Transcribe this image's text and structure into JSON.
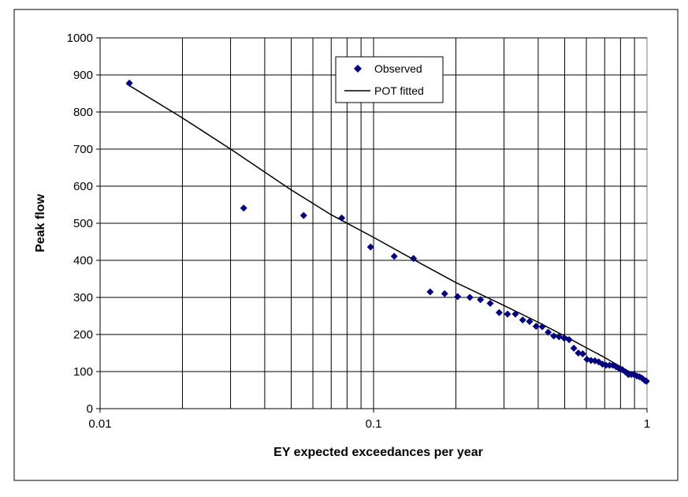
{
  "chart_data": {
    "type": "scatter",
    "title": "",
    "xlabel": "EY expected exceedances per year",
    "ylabel": "Peak flow",
    "x_scale": "log",
    "xlim": [
      0.01,
      1
    ],
    "ylim": [
      0,
      1000
    ],
    "x_ticks": [
      {
        "value": 0.01,
        "label": "0.01"
      },
      {
        "value": 0.1,
        "label": "0.1"
      },
      {
        "value": 1,
        "label": "1"
      }
    ],
    "y_ticks": [
      {
        "value": 0,
        "label": "0"
      },
      {
        "value": 100,
        "label": "100"
      },
      {
        "value": 200,
        "label": "200"
      },
      {
        "value": 300,
        "label": "300"
      },
      {
        "value": 400,
        "label": "400"
      },
      {
        "value": 500,
        "label": "500"
      },
      {
        "value": 600,
        "label": "600"
      },
      {
        "value": 700,
        "label": "700"
      },
      {
        "value": 800,
        "label": "800"
      },
      {
        "value": 900,
        "label": "900"
      },
      {
        "value": 1000,
        "label": "1000"
      }
    ],
    "grid": true,
    "legend_position": "top-center",
    "series": [
      {
        "name": "Observed",
        "kind": "scatter",
        "marker": "diamond",
        "color": "#000080",
        "points": [
          [
            0.0128,
            878
          ],
          [
            0.0335,
            541
          ],
          [
            0.0555,
            521
          ],
          [
            0.0765,
            514
          ],
          [
            0.0975,
            436
          ],
          [
            0.119,
            411
          ],
          [
            0.14,
            405
          ],
          [
            0.161,
            315
          ],
          [
            0.182,
            310
          ],
          [
            0.203,
            302
          ],
          [
            0.225,
            300
          ],
          [
            0.246,
            294
          ],
          [
            0.267,
            284
          ],
          [
            0.288,
            259
          ],
          [
            0.309,
            255
          ],
          [
            0.33,
            255
          ],
          [
            0.351,
            239
          ],
          [
            0.372,
            235
          ],
          [
            0.393,
            222
          ],
          [
            0.414,
            221
          ],
          [
            0.435,
            206
          ],
          [
            0.456,
            196
          ],
          [
            0.477,
            194
          ],
          [
            0.498,
            190
          ],
          [
            0.519,
            186
          ],
          [
            0.54,
            163
          ],
          [
            0.561,
            150
          ],
          [
            0.582,
            148
          ],
          [
            0.603,
            133
          ],
          [
            0.624,
            130
          ],
          [
            0.645,
            129
          ],
          [
            0.666,
            126
          ],
          [
            0.687,
            120
          ],
          [
            0.708,
            117
          ],
          [
            0.729,
            117
          ],
          [
            0.75,
            117
          ],
          [
            0.771,
            113
          ],
          [
            0.792,
            108
          ],
          [
            0.813,
            105
          ],
          [
            0.834,
            99
          ],
          [
            0.855,
            92
          ],
          [
            0.876,
            92
          ],
          [
            0.897,
            92
          ],
          [
            0.918,
            88
          ],
          [
            0.939,
            86
          ],
          [
            0.96,
            82
          ],
          [
            0.981,
            76
          ],
          [
            0.995,
            74
          ]
        ]
      },
      {
        "name": "POT fitted",
        "kind": "line",
        "color": "#000000",
        "points": [
          [
            0.0125,
            876
          ],
          [
            0.02,
            784
          ],
          [
            0.03,
            700
          ],
          [
            0.05,
            590
          ],
          [
            0.07,
            523
          ],
          [
            0.1,
            462
          ],
          [
            0.15,
            390
          ],
          [
            0.2,
            340
          ],
          [
            0.3,
            278
          ],
          [
            0.4,
            233
          ],
          [
            0.5,
            196
          ],
          [
            0.6,
            164
          ],
          [
            0.7,
            138
          ],
          [
            0.8,
            113
          ],
          [
            0.9,
            92
          ],
          [
            1.0,
            72
          ]
        ]
      }
    ]
  }
}
